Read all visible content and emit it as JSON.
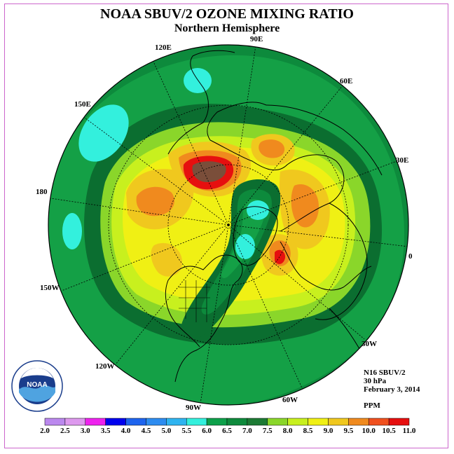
{
  "title": "NOAA SBUV/2 OZONE MIXING RATIO",
  "subtitle": "Northern Hemisphere",
  "longitude_labels": {
    "e90": "90E",
    "e60": "60E",
    "e30": "30E",
    "zero": "0",
    "w30": "30W",
    "w60": "60W",
    "w90": "90W",
    "w120": "120W",
    "w150": "150W",
    "d180": "180",
    "e150": "150E",
    "e120": "120E"
  },
  "info": {
    "satellite": "N16 SBUV/2",
    "pressure": "30 hPa",
    "date": "February 3, 2014",
    "units": "PPM"
  },
  "logo_text": "NOAA",
  "colorbar": {
    "labels": [
      "2.0",
      "2.5",
      "3.0",
      "3.5",
      "4.0",
      "4.5",
      "5.0",
      "5.5",
      "6.0",
      "6.5",
      "7.0",
      "7.5",
      "8.0",
      "8.5",
      "9.0",
      "9.5",
      "10.0",
      "10.5",
      "11.0"
    ],
    "colors": [
      "#bb88ee",
      "#dd99ee",
      "#ee22ee",
      "#0000ee",
      "#1e64ee",
      "#2d8cf0",
      "#2fb4f0",
      "#33f0dd",
      "#0da04a",
      "#0e8a3c",
      "#1c7a34",
      "#8ad62a",
      "#c8f01e",
      "#f0f014",
      "#f0c81e",
      "#f08a1e",
      "#f0501e",
      "#e60f0f",
      "#7a4e3a"
    ]
  },
  "map_colors": {
    "ocean_base": "#0d8a3c",
    "dark_green": "#0b6e30",
    "mid_green": "#14a046",
    "light_green": "#8ad62a",
    "yellow_green": "#c8f01e",
    "yellow": "#f0f014",
    "orange_light": "#f0c81e",
    "orange": "#f08a1e",
    "red": "#e60f0f",
    "brown": "#7a4e3a",
    "cyan": "#33f0dd"
  }
}
